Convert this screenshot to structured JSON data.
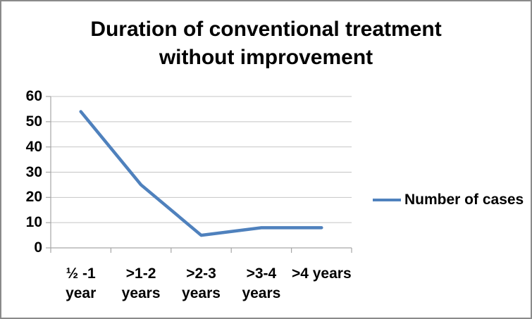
{
  "chart_data": {
    "type": "line",
    "title": "Duration of conventional treatment\nwithout improvement",
    "categories": [
      "½ -1 year",
      ">1-2 years",
      ">2-3 years",
      ">3-4 years",
      ">4 years"
    ],
    "categories_display": [
      "½ -1\nyear",
      ">1-2\nyears",
      ">2-3\nyears",
      ">3-4\nyears",
      ">4 years"
    ],
    "series": [
      {
        "name": "Number of cases",
        "values": [
          54,
          25,
          5,
          8,
          8
        ],
        "color": "#4F81BD"
      }
    ],
    "xlabel": "",
    "ylabel": "",
    "ylim": [
      0,
      60
    ],
    "yticks": [
      0,
      10,
      20,
      30,
      40,
      50,
      60
    ],
    "grid": "horizontal-major",
    "legend_position": "right-middle",
    "colors": {
      "line": "#4F81BD",
      "gridline": "#C4C4C4",
      "axis": "#A6A6A6",
      "text": "#000000",
      "background": "#FFFFFF",
      "border": "#8A8A8A"
    }
  }
}
